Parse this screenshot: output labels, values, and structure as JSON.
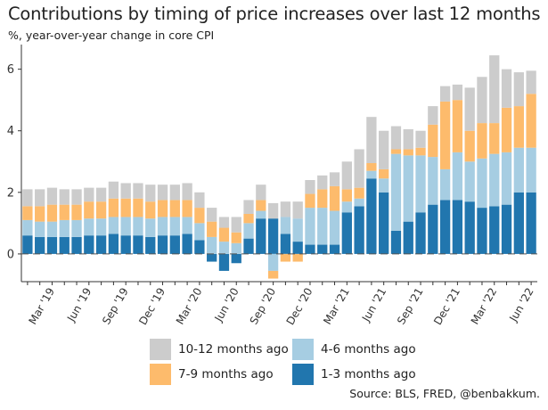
{
  "title": "Contributions by timing of price increases over last 12 months",
  "subtitle": "%, year-over-year change in core CPI",
  "source": "Source: BLS, FRED, @benbakkum.",
  "colors": {
    "m1_3": "#2176ae",
    "m4_6": "#a6cde2",
    "m7_9": "#fdbb6c",
    "m10_12": "#cccccc",
    "axis": "#333333"
  },
  "legend": [
    {
      "key": "m10_12",
      "label": "10-12 months ago"
    },
    {
      "key": "m4_6",
      "label": "4-6 months ago"
    },
    {
      "key": "m7_9",
      "label": "7-9 months ago"
    },
    {
      "key": "m1_3",
      "label": "1-3 months ago"
    }
  ],
  "chart_data": {
    "type": "bar",
    "stacked": true,
    "ylim": [
      -0.9,
      6.8
    ],
    "yticks": [
      0,
      2,
      4,
      6
    ],
    "grid": false,
    "legend_position": "bottom",
    "xtick_labels": [
      {
        "index": 2,
        "label": "Mar '19"
      },
      {
        "index": 5,
        "label": "Jun '19"
      },
      {
        "index": 8,
        "label": "Sep '19"
      },
      {
        "index": 11,
        "label": "Dec '19"
      },
      {
        "index": 14,
        "label": "Mar '20"
      },
      {
        "index": 17,
        "label": "Jun '20"
      },
      {
        "index": 20,
        "label": "Sep '20"
      },
      {
        "index": 23,
        "label": "Dec '20"
      },
      {
        "index": 26,
        "label": "Mar '21"
      },
      {
        "index": 29,
        "label": "Jun '21"
      },
      {
        "index": 32,
        "label": "Sep '21"
      },
      {
        "index": 35,
        "label": "Dec '21"
      },
      {
        "index": 38,
        "label": "Mar '22"
      },
      {
        "index": 41,
        "label": "Jun '22"
      }
    ],
    "categories": [
      "Jan '19",
      "Feb '19",
      "Mar '19",
      "Apr '19",
      "May '19",
      "Jun '19",
      "Jul '19",
      "Aug '19",
      "Sep '19",
      "Oct '19",
      "Nov '19",
      "Dec '19",
      "Jan '20",
      "Feb '20",
      "Mar '20",
      "Apr '20",
      "May '20",
      "Jun '20",
      "Jul '20",
      "Aug '20",
      "Sep '20",
      "Oct '20",
      "Nov '20",
      "Dec '20",
      "Jan '21",
      "Feb '21",
      "Mar '21",
      "Apr '21",
      "May '21",
      "Jun '21",
      "Jul '21",
      "Aug '21",
      "Sep '21",
      "Oct '21",
      "Nov '21",
      "Dec '21",
      "Jan '22",
      "Feb '22",
      "Mar '22",
      "Apr '22",
      "May '22",
      "Jun '22"
    ],
    "series": [
      {
        "name": "1-3 months ago",
        "key": "m1_3",
        "values": [
          0.6,
          0.55,
          0.55,
          0.55,
          0.55,
          0.6,
          0.6,
          0.65,
          0.6,
          0.6,
          0.55,
          0.6,
          0.6,
          0.65,
          0.45,
          -0.25,
          -0.55,
          -0.3,
          0.5,
          1.15,
          1.15,
          0.65,
          0.4,
          0.3,
          0.3,
          0.3,
          1.35,
          1.55,
          2.45,
          2.0,
          0.75,
          1.05,
          1.35,
          1.6,
          1.75,
          1.75,
          1.7,
          1.5,
          1.55,
          1.6,
          2.0,
          2.0
        ]
      },
      {
        "name": "4-6 months ago",
        "key": "m4_6",
        "values": [
          0.5,
          0.5,
          0.5,
          0.55,
          0.55,
          0.55,
          0.55,
          0.55,
          0.6,
          0.6,
          0.6,
          0.6,
          0.6,
          0.55,
          0.55,
          0.55,
          0.4,
          0.35,
          0.5,
          0.25,
          -0.55,
          0.55,
          0.75,
          1.2,
          1.2,
          1.1,
          0.35,
          0.25,
          0.25,
          0.45,
          2.5,
          2.15,
          1.85,
          1.55,
          1.0,
          1.55,
          1.3,
          1.6,
          1.7,
          1.7,
          1.45,
          1.45
        ]
      },
      {
        "name": "7-9 months ago",
        "key": "m7_9",
        "values": [
          0.45,
          0.5,
          0.55,
          0.5,
          0.5,
          0.55,
          0.55,
          0.6,
          0.6,
          0.6,
          0.55,
          0.55,
          0.55,
          0.55,
          0.5,
          0.5,
          0.45,
          0.35,
          0.3,
          0.35,
          -0.25,
          -0.25,
          -0.25,
          0.45,
          0.6,
          0.8,
          0.4,
          0.35,
          0.25,
          0.3,
          0.15,
          0.2,
          0.25,
          1.05,
          2.2,
          1.7,
          1.0,
          1.15,
          1.0,
          1.45,
          1.35,
          1.75
        ]
      },
      {
        "name": "10-12 months ago",
        "key": "m10_12",
        "values": [
          0.55,
          0.55,
          0.55,
          0.5,
          0.5,
          0.45,
          0.45,
          0.55,
          0.5,
          0.5,
          0.55,
          0.5,
          0.5,
          0.55,
          0.5,
          0.45,
          0.35,
          0.5,
          0.45,
          0.5,
          0.5,
          0.5,
          0.55,
          0.45,
          0.45,
          0.45,
          0.9,
          1.25,
          1.5,
          1.25,
          0.75,
          0.65,
          0.55,
          0.6,
          0.5,
          0.5,
          1.4,
          1.5,
          2.2,
          1.25,
          1.1,
          0.75
        ]
      }
    ]
  }
}
